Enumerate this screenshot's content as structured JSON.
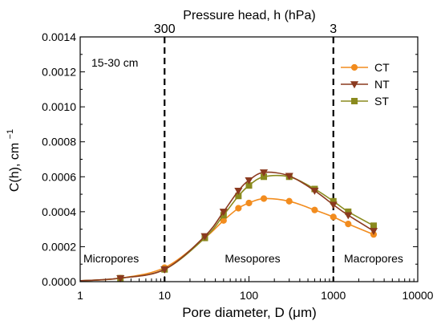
{
  "chart_data": {
    "type": "line",
    "title": "",
    "xlabel": "Pore diameter, D (μm)",
    "ylabel_main": "C(h), cm",
    "ylabel_sup": "−1",
    "top_axis_label": "Pressure head, h (hPa)",
    "top_axis_ticks": [
      {
        "x": 10,
        "label": "300"
      },
      {
        "x": 1000,
        "label": "3"
      }
    ],
    "xscale": "log",
    "xlim": [
      1,
      10000
    ],
    "ylim": [
      0,
      0.0014
    ],
    "x_ticks": [
      1,
      10,
      100,
      1000,
      10000
    ],
    "x_tick_labels": [
      "1",
      "10",
      "100",
      "1000",
      "10000"
    ],
    "y_ticks": [
      0,
      0.0002,
      0.0004,
      0.0006,
      0.0008,
      0.001,
      0.0012,
      0.0014
    ],
    "y_tick_labels": [
      "0.0000",
      "0.0002",
      "0.0004",
      "0.0006",
      "0.0008",
      "0.0010",
      "0.0012",
      "0.0014"
    ],
    "grid": false,
    "legend_position": "top-right",
    "depth_label": "15-30 cm",
    "vertical_lines": [
      10,
      1000
    ],
    "region_labels": [
      {
        "text": "Micropores"
      },
      {
        "text": "Mesopores"
      },
      {
        "text": "Macropores"
      }
    ],
    "series": [
      {
        "name": "CT",
        "color": "#F28C1E",
        "marker": "circle",
        "x": [
          3,
          10,
          30,
          50,
          75,
          100,
          150,
          300,
          600,
          1000,
          1500,
          3000
        ],
        "y": [
          2e-05,
          8e-05,
          0.00025,
          0.00035,
          0.00042,
          0.00045,
          0.000475,
          0.00046,
          0.00041,
          0.00037,
          0.00033,
          0.00027
        ]
      },
      {
        "name": "NT",
        "color": "#8B3A1F",
        "marker": "triangle-down",
        "x": [
          3,
          10,
          30,
          50,
          75,
          100,
          150,
          300,
          600,
          1000,
          1500,
          3000
        ],
        "y": [
          2e-05,
          7e-05,
          0.00026,
          0.0004,
          0.00052,
          0.00058,
          0.000625,
          0.000605,
          0.00052,
          0.00044,
          0.00038,
          0.00029
        ]
      },
      {
        "name": "ST",
        "color": "#8A8A1E",
        "marker": "square",
        "x": [
          3,
          10,
          30,
          50,
          75,
          100,
          150,
          300,
          600,
          1000,
          1500,
          3000
        ],
        "y": [
          2e-05,
          7e-05,
          0.00025,
          0.00038,
          0.00049,
          0.00055,
          0.0006,
          0.0006,
          0.00053,
          0.00046,
          0.0004,
          0.00032
        ]
      }
    ]
  }
}
